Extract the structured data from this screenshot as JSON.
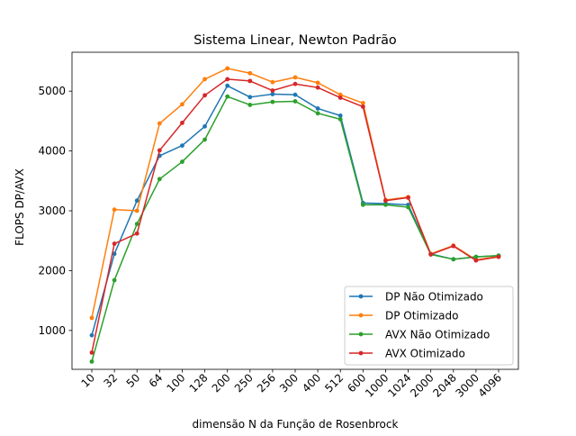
{
  "chart_data": {
    "type": "line",
    "title": "Sistema Linear, Newton Padrão",
    "xlabel": "dimensão N da Função de Rosenbrock",
    "ylabel": "FLOPS DP/AVX",
    "categories": [
      "10",
      "32",
      "50",
      "64",
      "100",
      "128",
      "200",
      "250",
      "256",
      "300",
      "400",
      "512",
      "600",
      "1000",
      "1024",
      "2000",
      "2048",
      "3000",
      "4096"
    ],
    "yticks": [
      1000,
      2000,
      3000,
      4000,
      5000
    ],
    "ylim": [
      350,
      5650
    ],
    "grid": false,
    "legend_position": "lower right",
    "series": [
      {
        "name": "DP Não Otimizado",
        "color": "#1f77b4",
        "values": [
          920,
          2280,
          3170,
          3920,
          4090,
          4410,
          5090,
          4900,
          4950,
          4940,
          4710,
          4590,
          3130,
          3120,
          3100,
          2280,
          2190,
          2230,
          2250
        ]
      },
      {
        "name": "DP Otimizado",
        "color": "#ff7f0e",
        "values": [
          1210,
          3020,
          3000,
          4460,
          4780,
          5200,
          5380,
          5300,
          5150,
          5230,
          5140,
          4940,
          4800,
          3180,
          3230,
          2280,
          2420,
          2180,
          2240
        ]
      },
      {
        "name": "AVX Não Otimizado",
        "color": "#2ca02c",
        "values": [
          480,
          1840,
          2780,
          3530,
          3820,
          4190,
          4910,
          4770,
          4820,
          4830,
          4630,
          4530,
          3100,
          3100,
          3060,
          2270,
          2190,
          2230,
          2250
        ]
      },
      {
        "name": "AVX Otimizado",
        "color": "#d62728",
        "values": [
          630,
          2450,
          2620,
          4010,
          4470,
          4930,
          5200,
          5170,
          5010,
          5120,
          5060,
          4890,
          4740,
          3170,
          3220,
          2270,
          2410,
          2170,
          2230
        ]
      }
    ]
  }
}
